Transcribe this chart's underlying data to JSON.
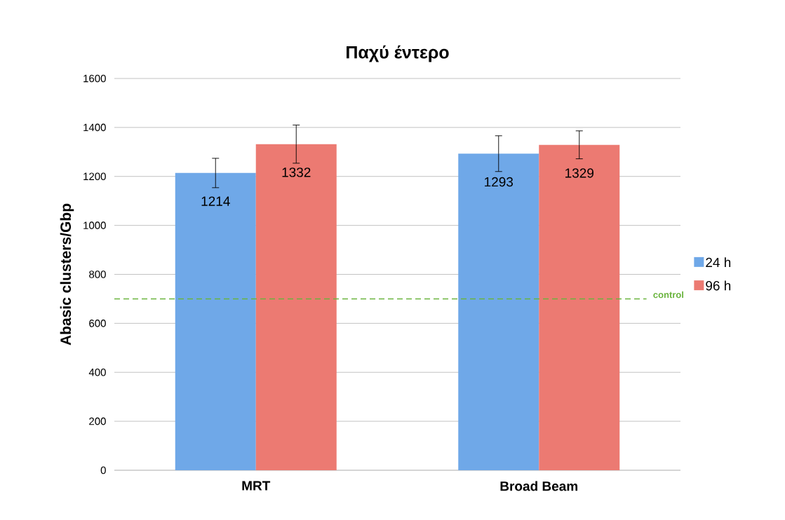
{
  "chart_data": {
    "type": "bar",
    "title": "Παχύ έντερο",
    "ylabel": "Abasic clusters/Gbp",
    "categories": [
      "MRT",
      "Broad Beam"
    ],
    "series": [
      {
        "name": "24 h",
        "color": "#6fa8e8",
        "values": [
          1214,
          1293
        ],
        "errors": [
          60,
          73
        ]
      },
      {
        "name": "96 h",
        "color": "#ec7a72",
        "values": [
          1332,
          1329
        ],
        "errors": [
          78,
          57
        ]
      }
    ],
    "ylim": [
      0,
      1600
    ],
    "yticks": [
      0,
      200,
      400,
      600,
      800,
      1000,
      1200,
      1400,
      1600
    ],
    "grid": "y",
    "legend": "right",
    "data_labels": true,
    "ref_lines": [
      {
        "axis": "y",
        "value": 700,
        "label": "control",
        "color": "#6ab43e",
        "line_style": "dashed"
      }
    ]
  }
}
